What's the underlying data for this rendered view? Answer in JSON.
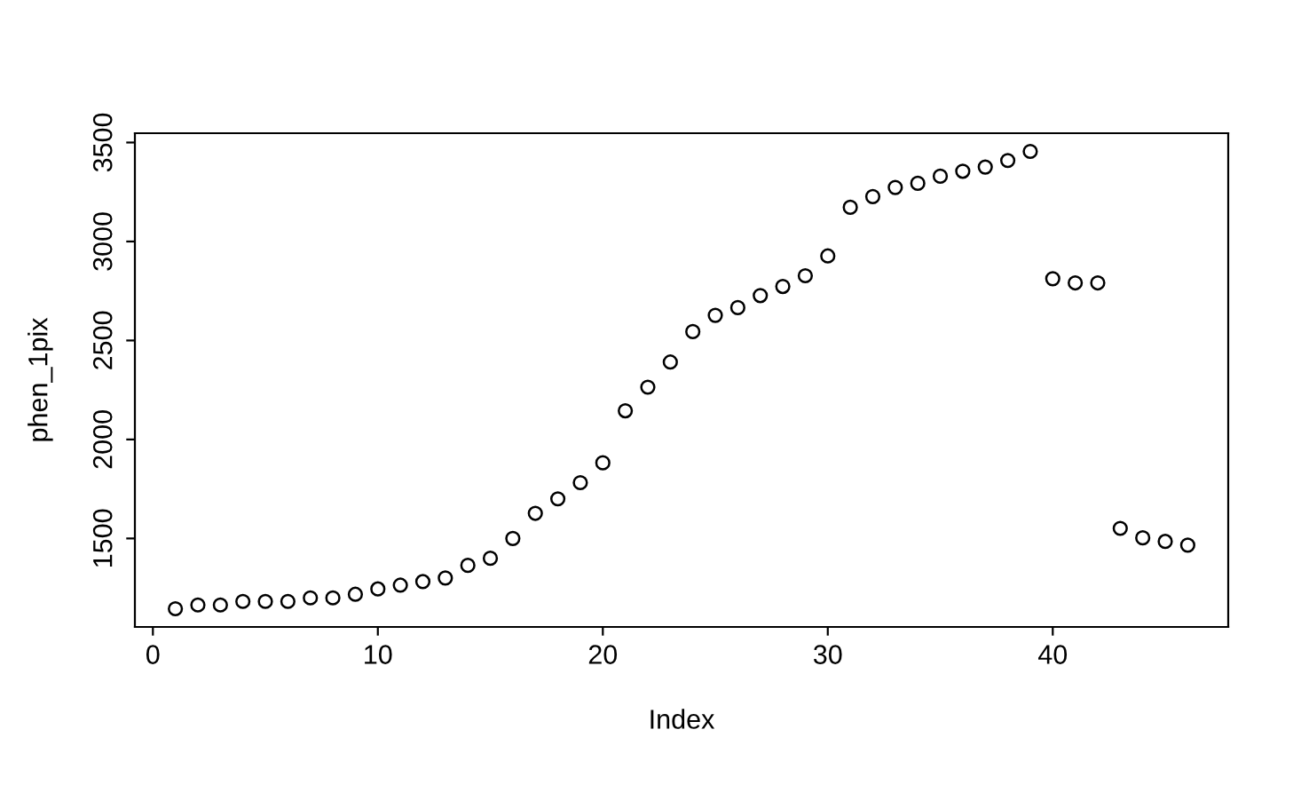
{
  "chart_data": {
    "type": "scatter",
    "xlabel": "Index",
    "ylabel": "phen_1pix",
    "x": [
      1,
      2,
      3,
      4,
      5,
      6,
      7,
      8,
      9,
      10,
      11,
      12,
      13,
      14,
      15,
      16,
      17,
      18,
      19,
      20,
      21,
      22,
      23,
      24,
      25,
      26,
      27,
      28,
      29,
      30,
      31,
      32,
      33,
      34,
      35,
      36,
      37,
      38,
      39,
      40,
      41,
      42,
      43,
      44,
      45,
      46
    ],
    "series": [
      {
        "color": "#000000",
        "values": [
          1145,
          1164,
          1164,
          1182,
          1182,
          1182,
          1200,
          1200,
          1218,
          1245,
          1264,
          1282,
          1300,
          1364,
          1400,
          1500,
          1627,
          1700,
          1782,
          1882,
          2145,
          2264,
          2391,
          2545,
          2627,
          2666,
          2727,
          2773,
          2827,
          2927,
          3173,
          3227,
          3273,
          3294,
          3330,
          3355,
          3376,
          3409,
          3455,
          2812,
          2791,
          2791,
          1551,
          1503,
          1485,
          1466
        ]
      }
    ],
    "xlim": [
      -0.8,
      47.8
    ],
    "ylim": [
      1053,
      3547
    ],
    "xticks": [
      0,
      10,
      20,
      30,
      40
    ],
    "yticks": [
      1500,
      2000,
      2500,
      3000,
      3500
    ],
    "marker": "circle",
    "grid": false,
    "legend": false
  }
}
